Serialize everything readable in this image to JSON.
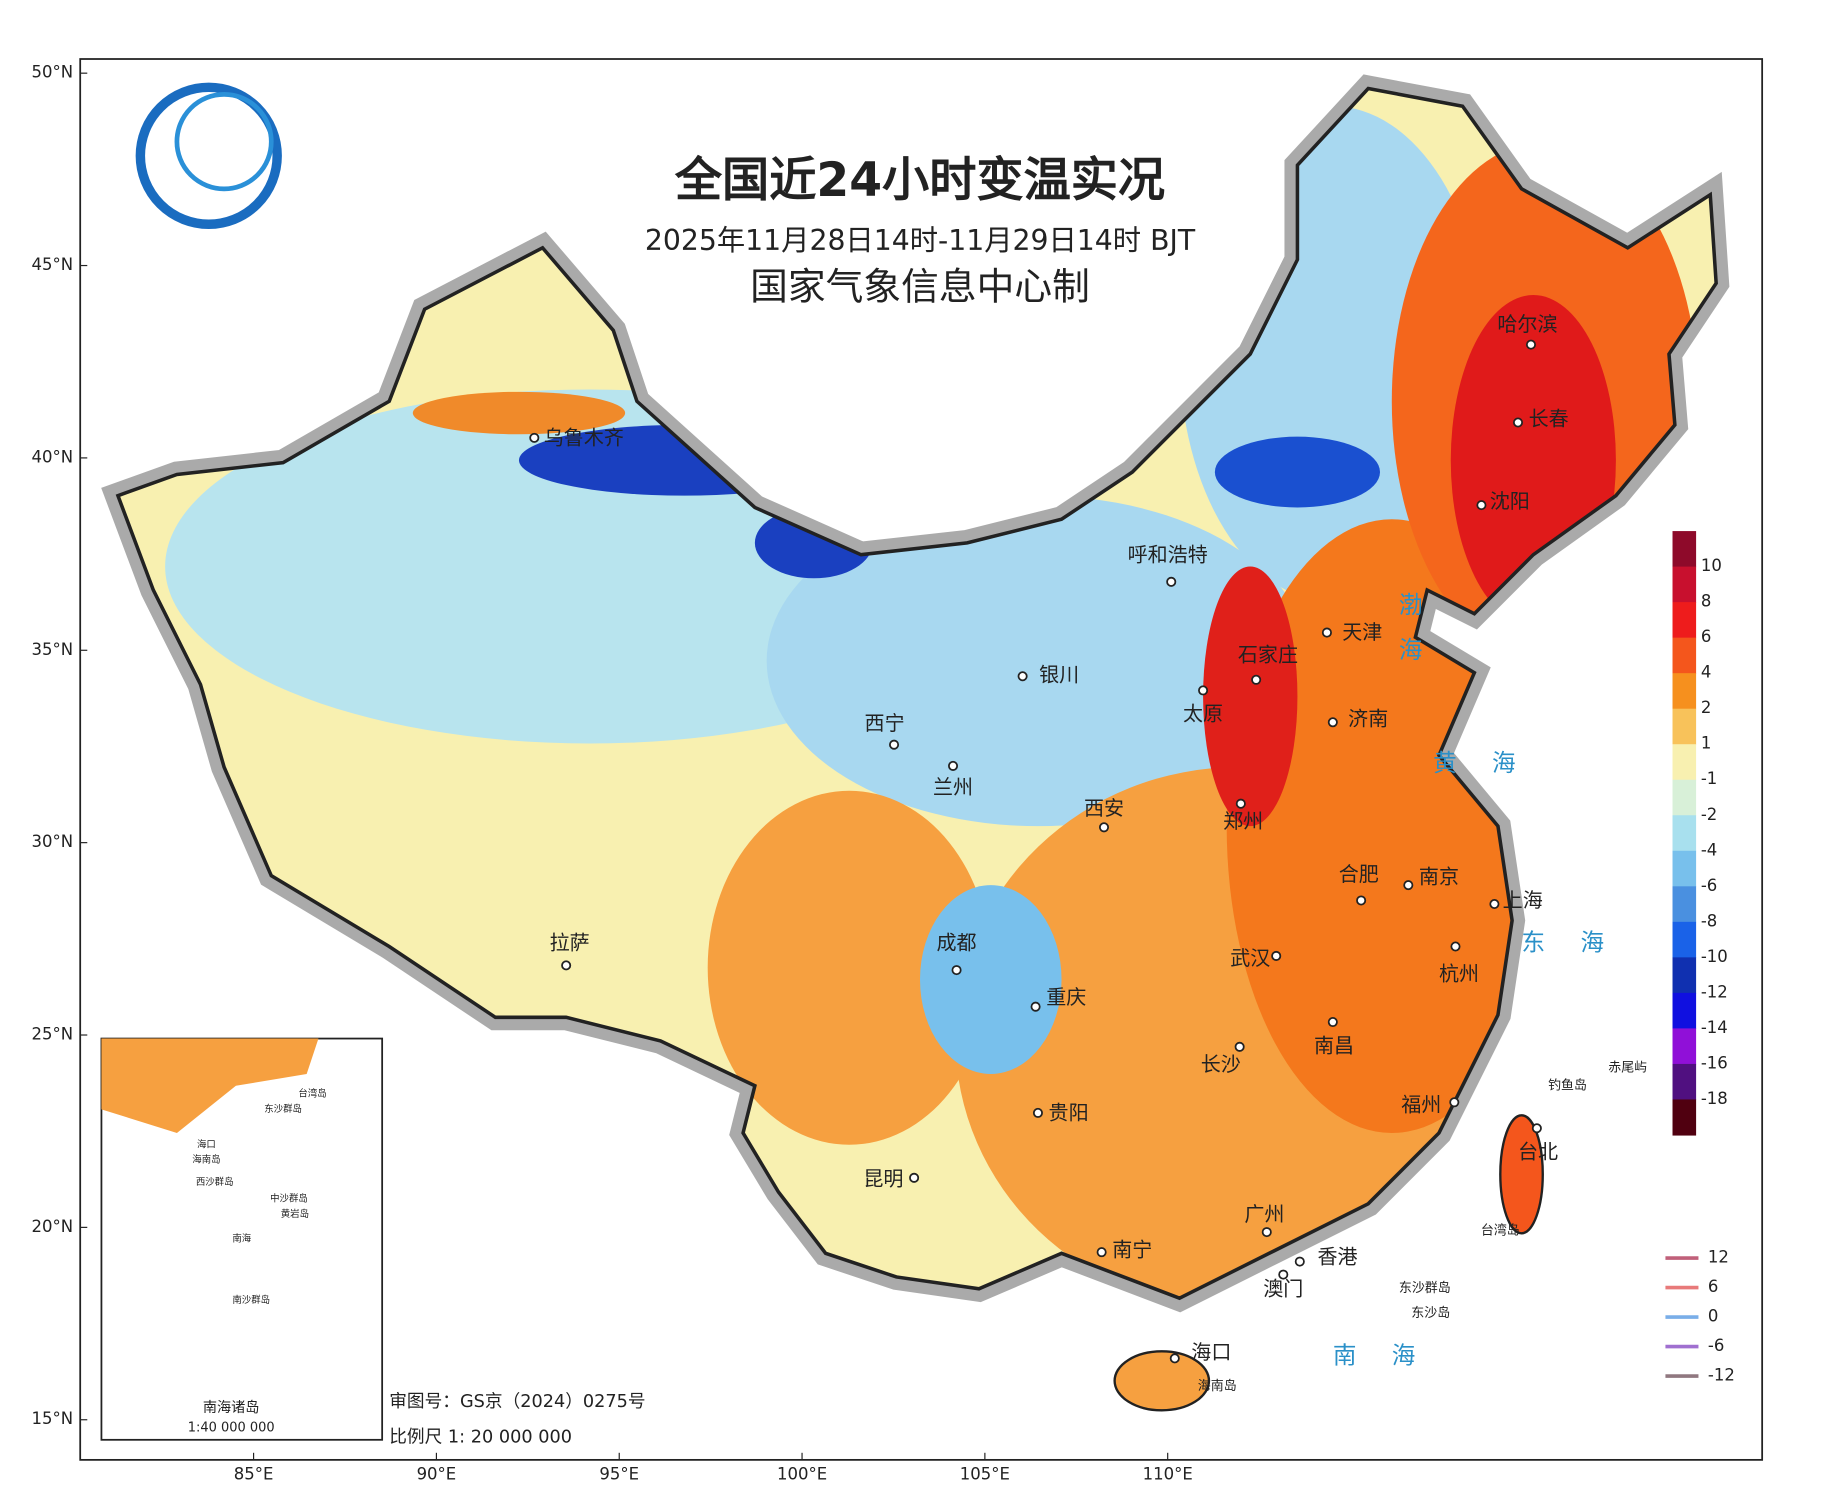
{
  "header": {
    "title": "全国近24小时变温实况",
    "subtitle": "2025年11月28日14时-11月29日14时 BJT",
    "producer": "国家气象信息中心制"
  },
  "map": {
    "lat_ticks": [
      {
        "value": 50,
        "label": "50°N"
      },
      {
        "value": 45,
        "label": "45°N"
      },
      {
        "value": 40,
        "label": "40°N"
      },
      {
        "value": 35,
        "label": "35°N"
      },
      {
        "value": 30,
        "label": "30°N"
      },
      {
        "value": 25,
        "label": "25°N"
      },
      {
        "value": 20,
        "label": "20°N"
      },
      {
        "value": 15,
        "label": "15°N"
      }
    ],
    "lon_ticks": [
      {
        "value": 85,
        "label": "85°E"
      },
      {
        "value": 90,
        "label": "90°E"
      },
      {
        "value": 95,
        "label": "95°E"
      },
      {
        "value": 100,
        "label": "100°E"
      },
      {
        "value": 105,
        "label": "105°E"
      },
      {
        "value": 110,
        "label": "110°E"
      }
    ],
    "cities": [
      "哈尔滨",
      "长春",
      "沈阳",
      "乌鲁木齐",
      "呼和浩特",
      "天津",
      "石家庄",
      "银川",
      "太原",
      "济南",
      "西宁",
      "兰州",
      "西安",
      "郑州",
      "合肥",
      "南京",
      "上海",
      "拉萨",
      "成都",
      "武汉",
      "杭州",
      "重庆",
      "长沙",
      "南昌",
      "贵阳",
      "福州",
      "台北",
      "昆明",
      "广州",
      "南宁",
      "香港",
      "澳门",
      "海口"
    ],
    "seas": [
      "渤海",
      "黄海",
      "东海",
      "南海"
    ],
    "islands": [
      "台湾岛",
      "海南岛",
      "东沙群岛",
      "东沙岛",
      "钓鱼岛",
      "赤尾屿"
    ]
  },
  "inset": {
    "title": "南海诸岛",
    "scale": "1:40 000 000",
    "labels": [
      "台湾岛",
      "东沙群岛",
      "海口",
      "海南岛",
      "西沙群岛",
      "中沙群岛",
      "黄岩岛",
      "南海",
      "南沙群岛"
    ]
  },
  "footer": {
    "approval": "审图号：GS京（2024）0275号",
    "scale": "比例尺 1: 20 000 000"
  },
  "legend": {
    "color_ticks": [
      10,
      8,
      6,
      4,
      2,
      1,
      -1,
      -2,
      -4,
      -6,
      -8,
      -10,
      -12,
      -14,
      -16,
      -18
    ],
    "colors": [
      "#8e0a2a",
      "#c8102e",
      "#ee1c1c",
      "#f4561c",
      "#f6901e",
      "#f8c25a",
      "#f8f0b0",
      "#d8f0d8",
      "#a8e0ee",
      "#78c0ec",
      "#4a90e0",
      "#1a62e8",
      "#1030b0",
      "#1010e0",
      "#9010d8",
      "#501080",
      "#500010"
    ],
    "line_ticks": [
      12,
      6,
      0,
      -6,
      -12
    ],
    "line_colors": [
      "#c0607a",
      "#e87a7a",
      "#7aaee8",
      "#a070d0",
      "#907880"
    ]
  }
}
